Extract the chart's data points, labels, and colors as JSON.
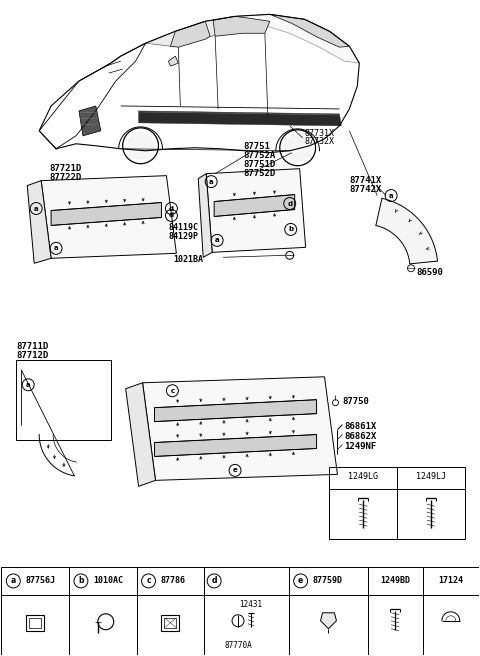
{
  "bg_color": "#ffffff",
  "lc": "#000000",
  "tc": "#000000",
  "fig_w": 4.8,
  "fig_h": 6.56,
  "dpi": 100,
  "parts": {
    "car_label_1": "87731X",
    "car_label_2": "87732X",
    "front_door_1": "87721D",
    "front_door_2": "87722D",
    "rear_door_1": "87751",
    "rear_door_2": "87752A",
    "rear_door_3": "87751D",
    "rear_door_4": "87752D",
    "clip1": "84119C",
    "clip2": "84129P",
    "lower_1": "86861X",
    "lower_2": "86862X",
    "lower_3": "1249NF",
    "lower_4": "87750",
    "screw_ba": "1021BA",
    "fender_c": "86590",
    "ff_1": "87711D",
    "ff_2": "87712D",
    "rf_1": "87741X",
    "rf_2": "87742X",
    "leg_a": "87756J",
    "leg_b": "1010AC",
    "leg_c": "87786",
    "leg_d1": "12431",
    "leg_d2": "87770A",
    "leg_e": "87759D",
    "leg_f": "1249BD",
    "leg_g": "17124",
    "screw_lg": "1249LG",
    "screw_lj": "1249LJ"
  }
}
